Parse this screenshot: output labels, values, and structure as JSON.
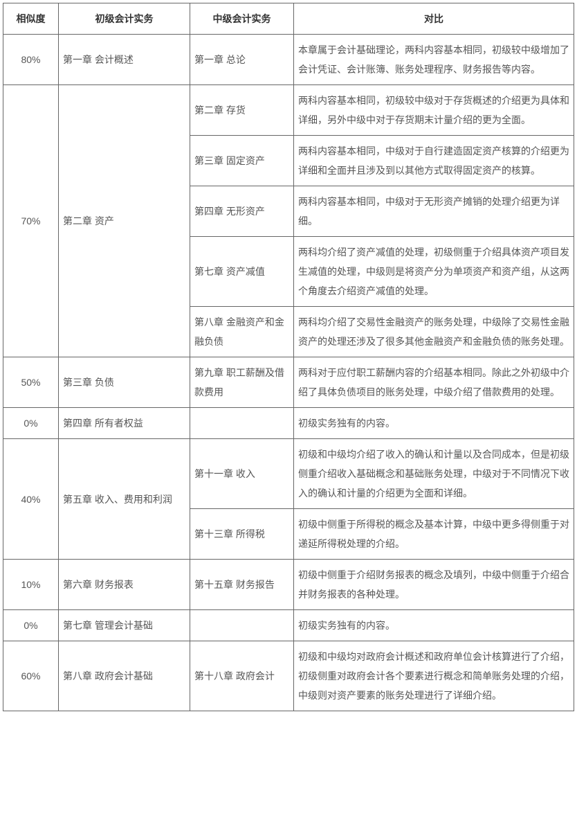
{
  "headers": {
    "similarity": "相似度",
    "primary": "初级会计实务",
    "intermediate": "中级会计实务",
    "comparison": "对比"
  },
  "rows": [
    {
      "sim": "80%",
      "sim_rowspan": 1,
      "primary": "第一章 会计概述",
      "primary_rowspan": 1,
      "intermediate": "第一章 总论",
      "comparison": "本章属于会计基础理论，两科内容基本相同，初级较中级增加了会计凭证、会计账簿、账务处理程序、财务报告等内容。"
    },
    {
      "sim": "70%",
      "sim_rowspan": 5,
      "primary": "第二章 资产",
      "primary_rowspan": 5,
      "intermediate": "第二章 存货",
      "comparison": "两科内容基本相同，初级较中级对于存货概述的介绍更为具体和详细，另外中级中对于存货期末计量介绍的更为全面。"
    },
    {
      "intermediate": "第三章 固定资产",
      "comparison": "两科内容基本相同，中级对于自行建造固定资产核算的介绍更为详细和全面并且涉及到以其他方式取得固定资产的核算。"
    },
    {
      "intermediate": "第四章 无形资产",
      "comparison": "两科内容基本相同，中级对于无形资产摊销的处理介绍更为详细。"
    },
    {
      "intermediate": "第七章 资产减值",
      "comparison": "两科均介绍了资产减值的处理，初级侧重于介绍具体资产项目发生减值的处理，中级则是将资产分为单项资产和资产组，从这两个角度去介绍资产减值的处理。"
    },
    {
      "intermediate": "第八章 金融资产和金融负债",
      "comparison": "两科均介绍了交易性金融资产的账务处理，中级除了交易性金融资产的处理还涉及了很多其他金融资产和金融负债的账务处理。"
    },
    {
      "sim": "50%",
      "sim_rowspan": 1,
      "primary": "第三章 负债",
      "primary_rowspan": 1,
      "intermediate": "第九章 职工薪酬及借款费用",
      "comparison": "两科对于应付职工薪酬内容的介绍基本相同。除此之外初级中介绍了具体负债项目的账务处理，中级介绍了借款费用的处理。"
    },
    {
      "sim": "0%",
      "sim_rowspan": 1,
      "primary": "第四章 所有者权益",
      "primary_rowspan": 1,
      "intermediate": "",
      "comparison": "初级实务独有的内容。"
    },
    {
      "sim": "40%",
      "sim_rowspan": 2,
      "primary": "第五章 收入、费用和利润",
      "primary_rowspan": 2,
      "intermediate": "第十一章 收入",
      "comparison": "初级和中级均介绍了收入的确认和计量以及合同成本，但是初级侧重介绍收入基础概念和基础账务处理，中级对于不同情况下收入的确认和计量的介绍更为全面和详细。"
    },
    {
      "intermediate": "第十三章 所得税",
      "comparison": "初级中侧重于所得税的概念及基本计算，中级中更多得侧重于对递延所得税处理的介绍。"
    },
    {
      "sim": "10%",
      "sim_rowspan": 1,
      "primary": "第六章 财务报表",
      "primary_rowspan": 1,
      "intermediate": "第十五章 财务报告",
      "comparison": "初级中侧重于介绍财务报表的概念及填列，中级中侧重于介绍合并财务报表的各种处理。"
    },
    {
      "sim": "0%",
      "sim_rowspan": 1,
      "primary": "第七章 管理会计基础",
      "primary_rowspan": 1,
      "intermediate": "",
      "comparison": "初级实务独有的内容。"
    },
    {
      "sim": "60%",
      "sim_rowspan": 1,
      "primary": "第八章 政府会计基础",
      "primary_rowspan": 1,
      "intermediate": "第十八章 政府会计",
      "comparison": "初级和中级均对政府会计概述和政府单位会计核算进行了介绍，初级侧重对政府会计各个要素进行概念和简单账务处理的介绍，中级则对资产要素的账务处理进行了详细介绍。"
    }
  ]
}
